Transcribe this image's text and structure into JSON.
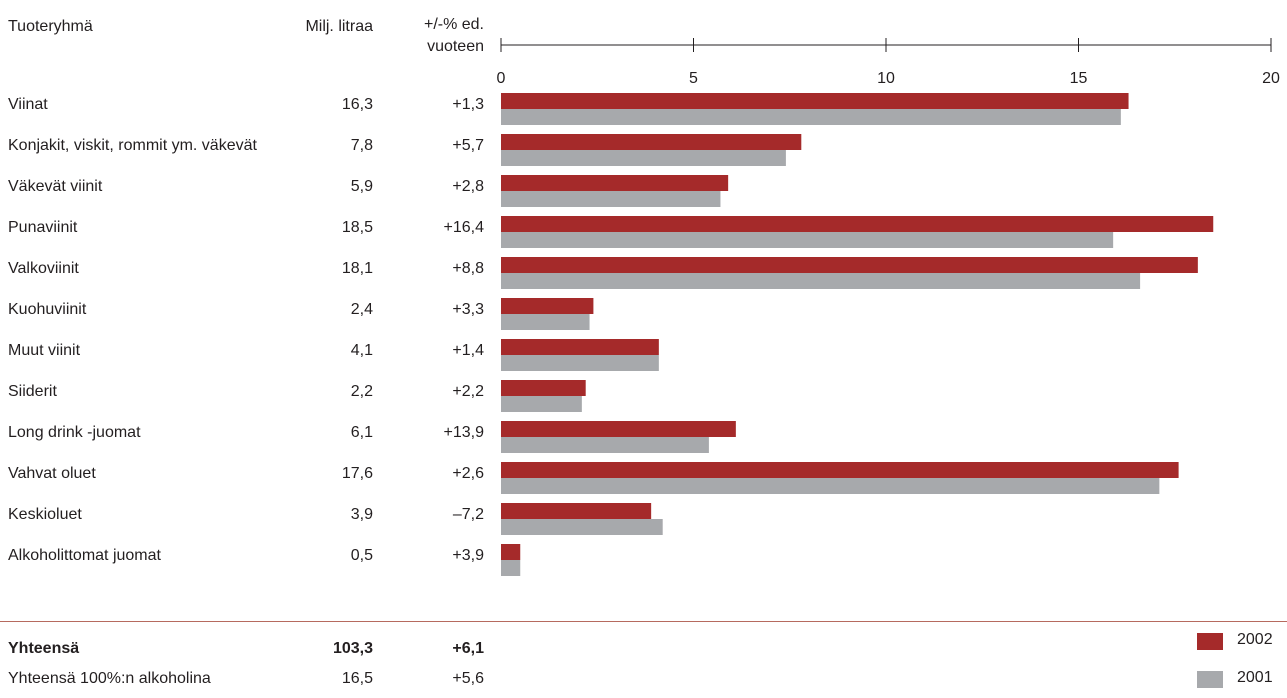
{
  "headers": {
    "product_group": "Tuoteryhmä",
    "volume": "Milj. litraa",
    "change_line1": "+/-% ed.",
    "change_line2": "vuoteen"
  },
  "rows": [
    {
      "name": "Viinat",
      "volume": "16,3",
      "change": "+1,3"
    },
    {
      "name": "Konjakit, viskit, rommit ym. väkevät",
      "volume": "7,8",
      "change": "+5,7"
    },
    {
      "name": "Väkevät viinit",
      "volume": "5,9",
      "change": "+2,8"
    },
    {
      "name": "Punaviinit",
      "volume": "18,5",
      "change": "+16,4"
    },
    {
      "name": "Valkoviinit",
      "volume": "18,1",
      "change": "+8,8"
    },
    {
      "name": "Kuohuviinit",
      "volume": "2,4",
      "change": "+3,3"
    },
    {
      "name": "Muut viinit",
      "volume": "4,1",
      "change": "+1,4"
    },
    {
      "name": "Siiderit",
      "volume": "2,2",
      "change": "+2,2"
    },
    {
      "name": "Long drink -juomat",
      "volume": "6,1",
      "change": "+13,9"
    },
    {
      "name": "Vahvat oluet",
      "volume": "17,6",
      "change": "+2,6"
    },
    {
      "name": "Keskioluet",
      "volume": "3,9",
      "change": "–7,2"
    },
    {
      "name": "Alkoholittomat juomat",
      "volume": "0,5",
      "change": "+3,9"
    }
  ],
  "totals": [
    {
      "name": "Yhteensä",
      "volume": "103,3",
      "change": "+6,1"
    },
    {
      "name": "Yhteensä 100%:n alkoholina",
      "volume": "16,5",
      "change": "+5,6"
    }
  ],
  "chart_data": {
    "type": "bar",
    "orientation": "horizontal",
    "categories": [
      "Viinat",
      "Konjakit, viskit, rommit ym. väkevät",
      "Väkevät viinit",
      "Punaviinit",
      "Valkoviinit",
      "Kuohuviinit",
      "Muut viinit",
      "Siiderit",
      "Long drink -juomat",
      "Vahvat oluet",
      "Keskioluet",
      "Alkoholittomat juomat"
    ],
    "series": [
      {
        "name": "2002",
        "color": "#a52a2a",
        "values": [
          16.3,
          7.8,
          5.9,
          18.5,
          18.1,
          2.4,
          4.1,
          2.2,
          6.1,
          17.6,
          3.9,
          0.5
        ]
      },
      {
        "name": "2001",
        "color": "#a7a9ac",
        "values": [
          16.1,
          7.4,
          5.7,
          15.9,
          16.6,
          2.3,
          4.1,
          2.1,
          5.4,
          17.1,
          4.2,
          0.5
        ]
      }
    ],
    "xlim": [
      0,
      20
    ],
    "ticks": [
      0,
      5,
      10,
      15,
      20
    ],
    "tick_labels": [
      "0",
      "5",
      "10",
      "15",
      "20"
    ],
    "legend_position": "bottom-right"
  }
}
